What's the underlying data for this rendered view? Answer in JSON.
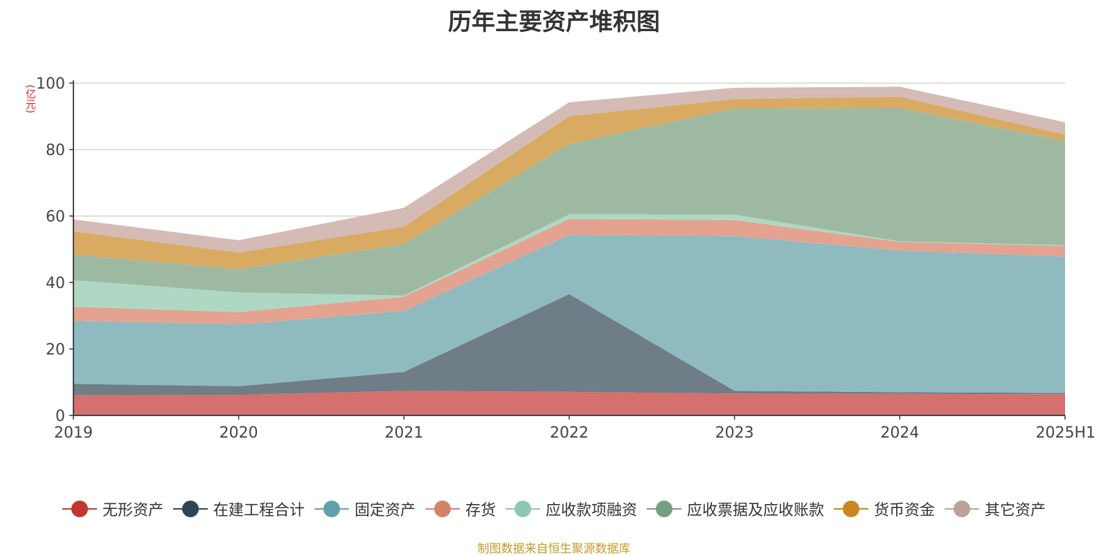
{
  "chart_data": {
    "type": "area",
    "title": "历年主要资产堆积图",
    "unit": "(亿元)",
    "categories": [
      "2019",
      "2020",
      "2021",
      "2022",
      "2023",
      "2024",
      "2025H1"
    ],
    "ylim": [
      0,
      100
    ],
    "yticks": [
      "0",
      "20",
      "40",
      "60",
      "80",
      "100"
    ],
    "grid": true,
    "legend_position": "bottom",
    "series": [
      {
        "name": "无形资产",
        "color": "#d4706d",
        "legend_color": "#c23531",
        "values": [
          6.1,
          6.2,
          7.4,
          7.1,
          6.6,
          6.5,
          6.4
        ]
      },
      {
        "name": "在建工程合计",
        "color": "#6f7d87",
        "legend_color": "#2f4554",
        "values": [
          3.4,
          2.6,
          5.7,
          29.4,
          0.8,
          0.5,
          0.4
        ]
      },
      {
        "name": "固定资产",
        "color": "#8fbac0",
        "legend_color": "#61a0a8",
        "values": [
          19.0,
          18.6,
          18.3,
          17.8,
          46.6,
          42.6,
          41.0
        ]
      },
      {
        "name": "存货",
        "color": "#e3a390",
        "legend_color": "#d48265",
        "values": [
          4.2,
          3.7,
          4.3,
          4.8,
          4.8,
          2.6,
          3.2
        ]
      },
      {
        "name": "应收款项融资",
        "color": "#afd8c4",
        "legend_color": "#91c7ae",
        "values": [
          8.0,
          5.9,
          0.4,
          1.4,
          1.6,
          0.2,
          0.2
        ]
      },
      {
        "name": "应收票据及应收账款",
        "color": "#9eb9a2",
        "legend_color": "#749f83",
        "values": [
          7.7,
          7.0,
          15.5,
          21.2,
          32.0,
          40.1,
          31.4
        ]
      },
      {
        "name": "货币资金",
        "color": "#d9aa62",
        "legend_color": "#ca8622",
        "values": [
          7.0,
          5.0,
          5.2,
          8.3,
          2.8,
          3.4,
          1.9
        ]
      },
      {
        "name": "其它资产",
        "color": "#d4bbb5",
        "legend_color": "#bda29a",
        "values": [
          3.6,
          3.7,
          5.7,
          4.2,
          3.4,
          3.0,
          3.7
        ]
      }
    ]
  },
  "footer": "制图数据来自恒生聚源数据库"
}
